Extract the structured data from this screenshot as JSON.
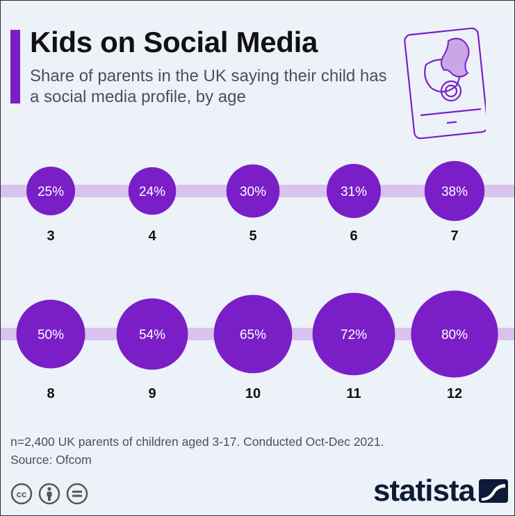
{
  "header": {
    "title": "Kids on Social Media",
    "subtitle": "Share of parents in the UK saying their child has a social media profile, by age",
    "accent_color": "#7a1fc7",
    "decoration_icon": "smartphone-pacifier-icon"
  },
  "chart_data": {
    "type": "bubble",
    "title": "Kids on Social Media",
    "subtitle": "Share of parents in the UK saying their child has a social media profile, by age",
    "categories": [
      "3",
      "4",
      "5",
      "6",
      "7",
      "8",
      "9",
      "10",
      "11",
      "12"
    ],
    "values": [
      25,
      24,
      30,
      31,
      38,
      50,
      54,
      65,
      72,
      80
    ],
    "value_unit": "%",
    "bubble_color": "#7a1fc7",
    "band_color": "#d8c3ee",
    "rows": 2,
    "per_row": 5
  },
  "footer": {
    "note": "n=2,400 UK parents of children aged 3-17. Conducted Oct-Dec 2021.",
    "source": "Source: Ofcom",
    "license_icons": [
      "creative-commons-icon",
      "attribution-icon",
      "no-derivatives-icon"
    ],
    "brand": "statista"
  }
}
